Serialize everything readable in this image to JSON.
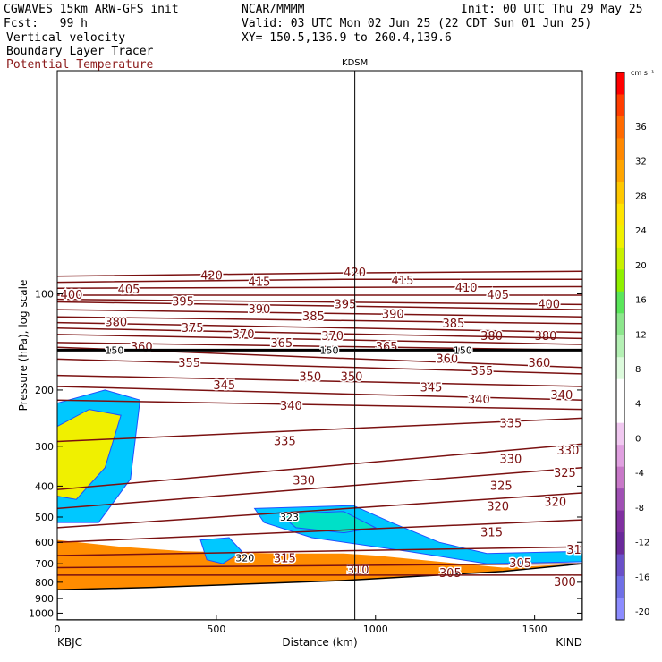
{
  "header": {
    "model": "CGWAVES 15km ARW-GFS init",
    "forecast": "Fcst:   99 h",
    "org": "NCAR/MMMM",
    "init": "Init: 00 UTC Thu 29 May 25",
    "valid": "Valid: 03 UTC Mon 02 Jun 25 (22 CDT Sun 01 Jun 25)",
    "xy": "XY= 150.5,136.9 to 260.4,139.6",
    "field1": "Vertical velocity",
    "field2": "Boundary Layer Tracer",
    "field3": "Potential Temperature",
    "field3_color": "#8b1a1a"
  },
  "chart_data": {
    "type": "heatmap",
    "title": "",
    "xlabel": "Distance (km)",
    "ylabel": "Pressure (hPa), log scale",
    "xlim": [
      0,
      1650
    ],
    "ylim": [
      1050,
      20
    ],
    "y_scale": "log",
    "x_ticks": [
      0,
      500,
      1000,
      1500
    ],
    "y_ticks": [
      100,
      200,
      300,
      400,
      500,
      600,
      700,
      800,
      900,
      1000
    ],
    "x_endpoints": {
      "left": "KBJC",
      "right": "KIND"
    },
    "marker": {
      "label": "KDSM",
      "x": 935
    },
    "colorbar": {
      "unit": "cm s⁻¹",
      "labels": [
        36,
        32,
        28,
        24,
        20,
        16,
        12,
        8,
        4,
        0,
        -4,
        -8,
        -12,
        -16,
        -20
      ],
      "colors": [
        "#ff0000",
        "#ff3d00",
        "#ff6a00",
        "#ff8800",
        "#ffa500",
        "#ffc800",
        "#ffe400",
        "#f0f000",
        "#c8f000",
        "#8ff000",
        "#5ae65a",
        "#8ce68c",
        "#b4f0b4",
        "#dcfadc",
        "#ffffff",
        "#ffffff",
        "#f0c8f0",
        "#e0a0e0",
        "#c878c8",
        "#a050b4",
        "#8030a0",
        "#6a2a9a",
        "#6a50c8",
        "#7070e6",
        "#8c8cff"
      ]
    },
    "theta_contours": [
      {
        "label": 420,
        "points": [
          [
            0,
            88
          ],
          [
            900,
            86
          ],
          [
            1650,
            85
          ]
        ],
        "labels_at": [
          [
            450,
            88
          ],
          [
            900,
            86
          ]
        ]
      },
      {
        "label": 415,
        "points": [
          [
            0,
            92
          ],
          [
            900,
            90
          ],
          [
            1650,
            90
          ]
        ],
        "labels_at": [
          [
            600,
            92
          ],
          [
            1050,
            91
          ]
        ]
      },
      {
        "label": 410,
        "points": [
          [
            0,
            96
          ],
          [
            1650,
            95
          ]
        ],
        "labels_at": [
          [
            1250,
            96
          ]
        ]
      },
      {
        "label": 405,
        "points": [
          [
            0,
            101
          ],
          [
            1650,
            101
          ]
        ],
        "labels_at": [
          [
            190,
            97
          ],
          [
            1350,
            101
          ]
        ]
      },
      {
        "label": 400,
        "points": [
          [
            0,
            104
          ],
          [
            1650,
            108
          ]
        ],
        "labels_at": [
          [
            10,
            101
          ],
          [
            1510,
            108
          ]
        ]
      },
      {
        "label": 395,
        "points": [
          [
            0,
            106
          ],
          [
            1650,
            112
          ]
        ],
        "labels_at": [
          [
            360,
            106
          ],
          [
            870,
            108
          ]
        ]
      },
      {
        "label": 390,
        "points": [
          [
            0,
            112
          ],
          [
            1650,
            118
          ]
        ],
        "labels_at": [
          [
            600,
            112
          ],
          [
            1020,
            116
          ]
        ]
      },
      {
        "label": 385,
        "points": [
          [
            0,
            118
          ],
          [
            1650,
            124
          ]
        ],
        "labels_at": [
          [
            770,
            118
          ],
          [
            1210,
            124
          ]
        ]
      },
      {
        "label": 380,
        "points": [
          [
            0,
            123
          ],
          [
            1650,
            132
          ]
        ],
        "labels_at": [
          [
            150,
            123
          ],
          [
            1330,
            136
          ],
          [
            1500,
            136
          ]
        ]
      },
      {
        "label": 375,
        "points": [
          [
            0,
            128
          ],
          [
            1650,
            138
          ]
        ],
        "labels_at": [
          [
            390,
            128
          ]
        ]
      },
      {
        "label": 370,
        "points": [
          [
            0,
            134
          ],
          [
            1650,
            144
          ]
        ],
        "labels_at": [
          [
            550,
            134
          ],
          [
            830,
            136
          ]
        ]
      },
      {
        "label": 365,
        "points": [
          [
            0,
            142
          ],
          [
            1650,
            150
          ]
        ],
        "labels_at": [
          [
            670,
            143
          ],
          [
            1000,
            147
          ]
        ]
      },
      {
        "label": 360,
        "points": [
          [
            0,
            147
          ],
          [
            1650,
            170
          ]
        ],
        "labels_at": [
          [
            230,
            147
          ],
          [
            1190,
            160
          ],
          [
            1480,
            165
          ]
        ]
      },
      {
        "label": 355,
        "points": [
          [
            0,
            160
          ],
          [
            1650,
            178
          ]
        ],
        "labels_at": [
          [
            380,
            165
          ],
          [
            1300,
            175
          ]
        ]
      },
      {
        "label": 350,
        "points": [
          [
            0,
            180
          ],
          [
            1650,
            195
          ]
        ],
        "labels_at": [
          [
            760,
            182
          ],
          [
            890,
            182
          ]
        ]
      },
      {
        "label": 345,
        "points": [
          [
            0,
            195
          ],
          [
            1650,
            215
          ]
        ],
        "labels_at": [
          [
            490,
            194
          ],
          [
            1140,
            197
          ]
        ]
      },
      {
        "label": 340,
        "points": [
          [
            0,
            215
          ],
          [
            1650,
            230
          ]
        ],
        "labels_at": [
          [
            700,
            225
          ],
          [
            1290,
            215
          ],
          [
            1550,
            208
          ]
        ]
      },
      {
        "label": 335,
        "points": [
          [
            0,
            290
          ],
          [
            1650,
            245
          ]
        ],
        "labels_at": [
          [
            680,
            290
          ],
          [
            1390,
            255
          ]
        ]
      },
      {
        "label": 330,
        "points": [
          [
            0,
            410
          ],
          [
            1650,
            295
          ]
        ],
        "labels_at": [
          [
            740,
            385
          ],
          [
            1390,
            330
          ],
          [
            1570,
            310
          ]
        ]
      },
      {
        "label": 325,
        "points": [
          [
            0,
            470
          ],
          [
            1650,
            350
          ]
        ],
        "labels_at": [
          [
            1360,
            400
          ],
          [
            1560,
            365
          ]
        ]
      },
      {
        "label": 320,
        "points": [
          [
            0,
            540
          ],
          [
            1650,
            420
          ]
        ],
        "labels_at": [
          [
            1350,
            465
          ],
          [
            1530,
            450
          ]
        ]
      },
      {
        "label": 315,
        "points": [
          [
            0,
            600
          ],
          [
            1650,
            510
          ]
        ],
        "labels_at": [
          [
            680,
            675
          ],
          [
            1330,
            560
          ]
        ]
      },
      {
        "label": 310,
        "points": [
          [
            0,
            660
          ],
          [
            1650,
            620
          ]
        ],
        "labels_at": [
          [
            910,
            735
          ],
          [
            1600,
            635
          ]
        ]
      },
      {
        "label": 305,
        "points": [
          [
            0,
            720
          ],
          [
            1650,
            700
          ]
        ],
        "labels_at": [
          [
            1200,
            750
          ],
          [
            1420,
            700
          ]
        ]
      },
      {
        "label": 300,
        "points": [
          [
            0,
            760
          ],
          [
            1650,
            760
          ]
        ],
        "labels_at": [
          [
            1560,
            800
          ]
        ]
      }
    ],
    "inline_labels": [
      {
        "text": "150",
        "x": 150,
        "p": 150
      },
      {
        "text": "150",
        "x": 825,
        "p": 150
      },
      {
        "text": "150",
        "x": 1245,
        "p": 150
      },
      {
        "text": "320",
        "x": 560,
        "p": 670
      },
      {
        "text": "323",
        "x": 700,
        "p": 500
      }
    ],
    "tropopause_p": 150,
    "terrain_surface": [
      [
        0,
        845
      ],
      [
        300,
        830
      ],
      [
        600,
        810
      ],
      [
        900,
        790
      ],
      [
        1200,
        760
      ],
      [
        1400,
        740
      ],
      [
        1650,
        700
      ]
    ],
    "boundary_layer": {
      "top": [
        [
          0,
          590
        ],
        [
          200,
          620
        ],
        [
          400,
          640
        ],
        [
          700,
          650
        ],
        [
          900,
          650
        ],
        [
          1000,
          660
        ],
        [
          1200,
          690
        ],
        [
          1400,
          720
        ],
        [
          1650,
          700
        ]
      ]
    }
  }
}
